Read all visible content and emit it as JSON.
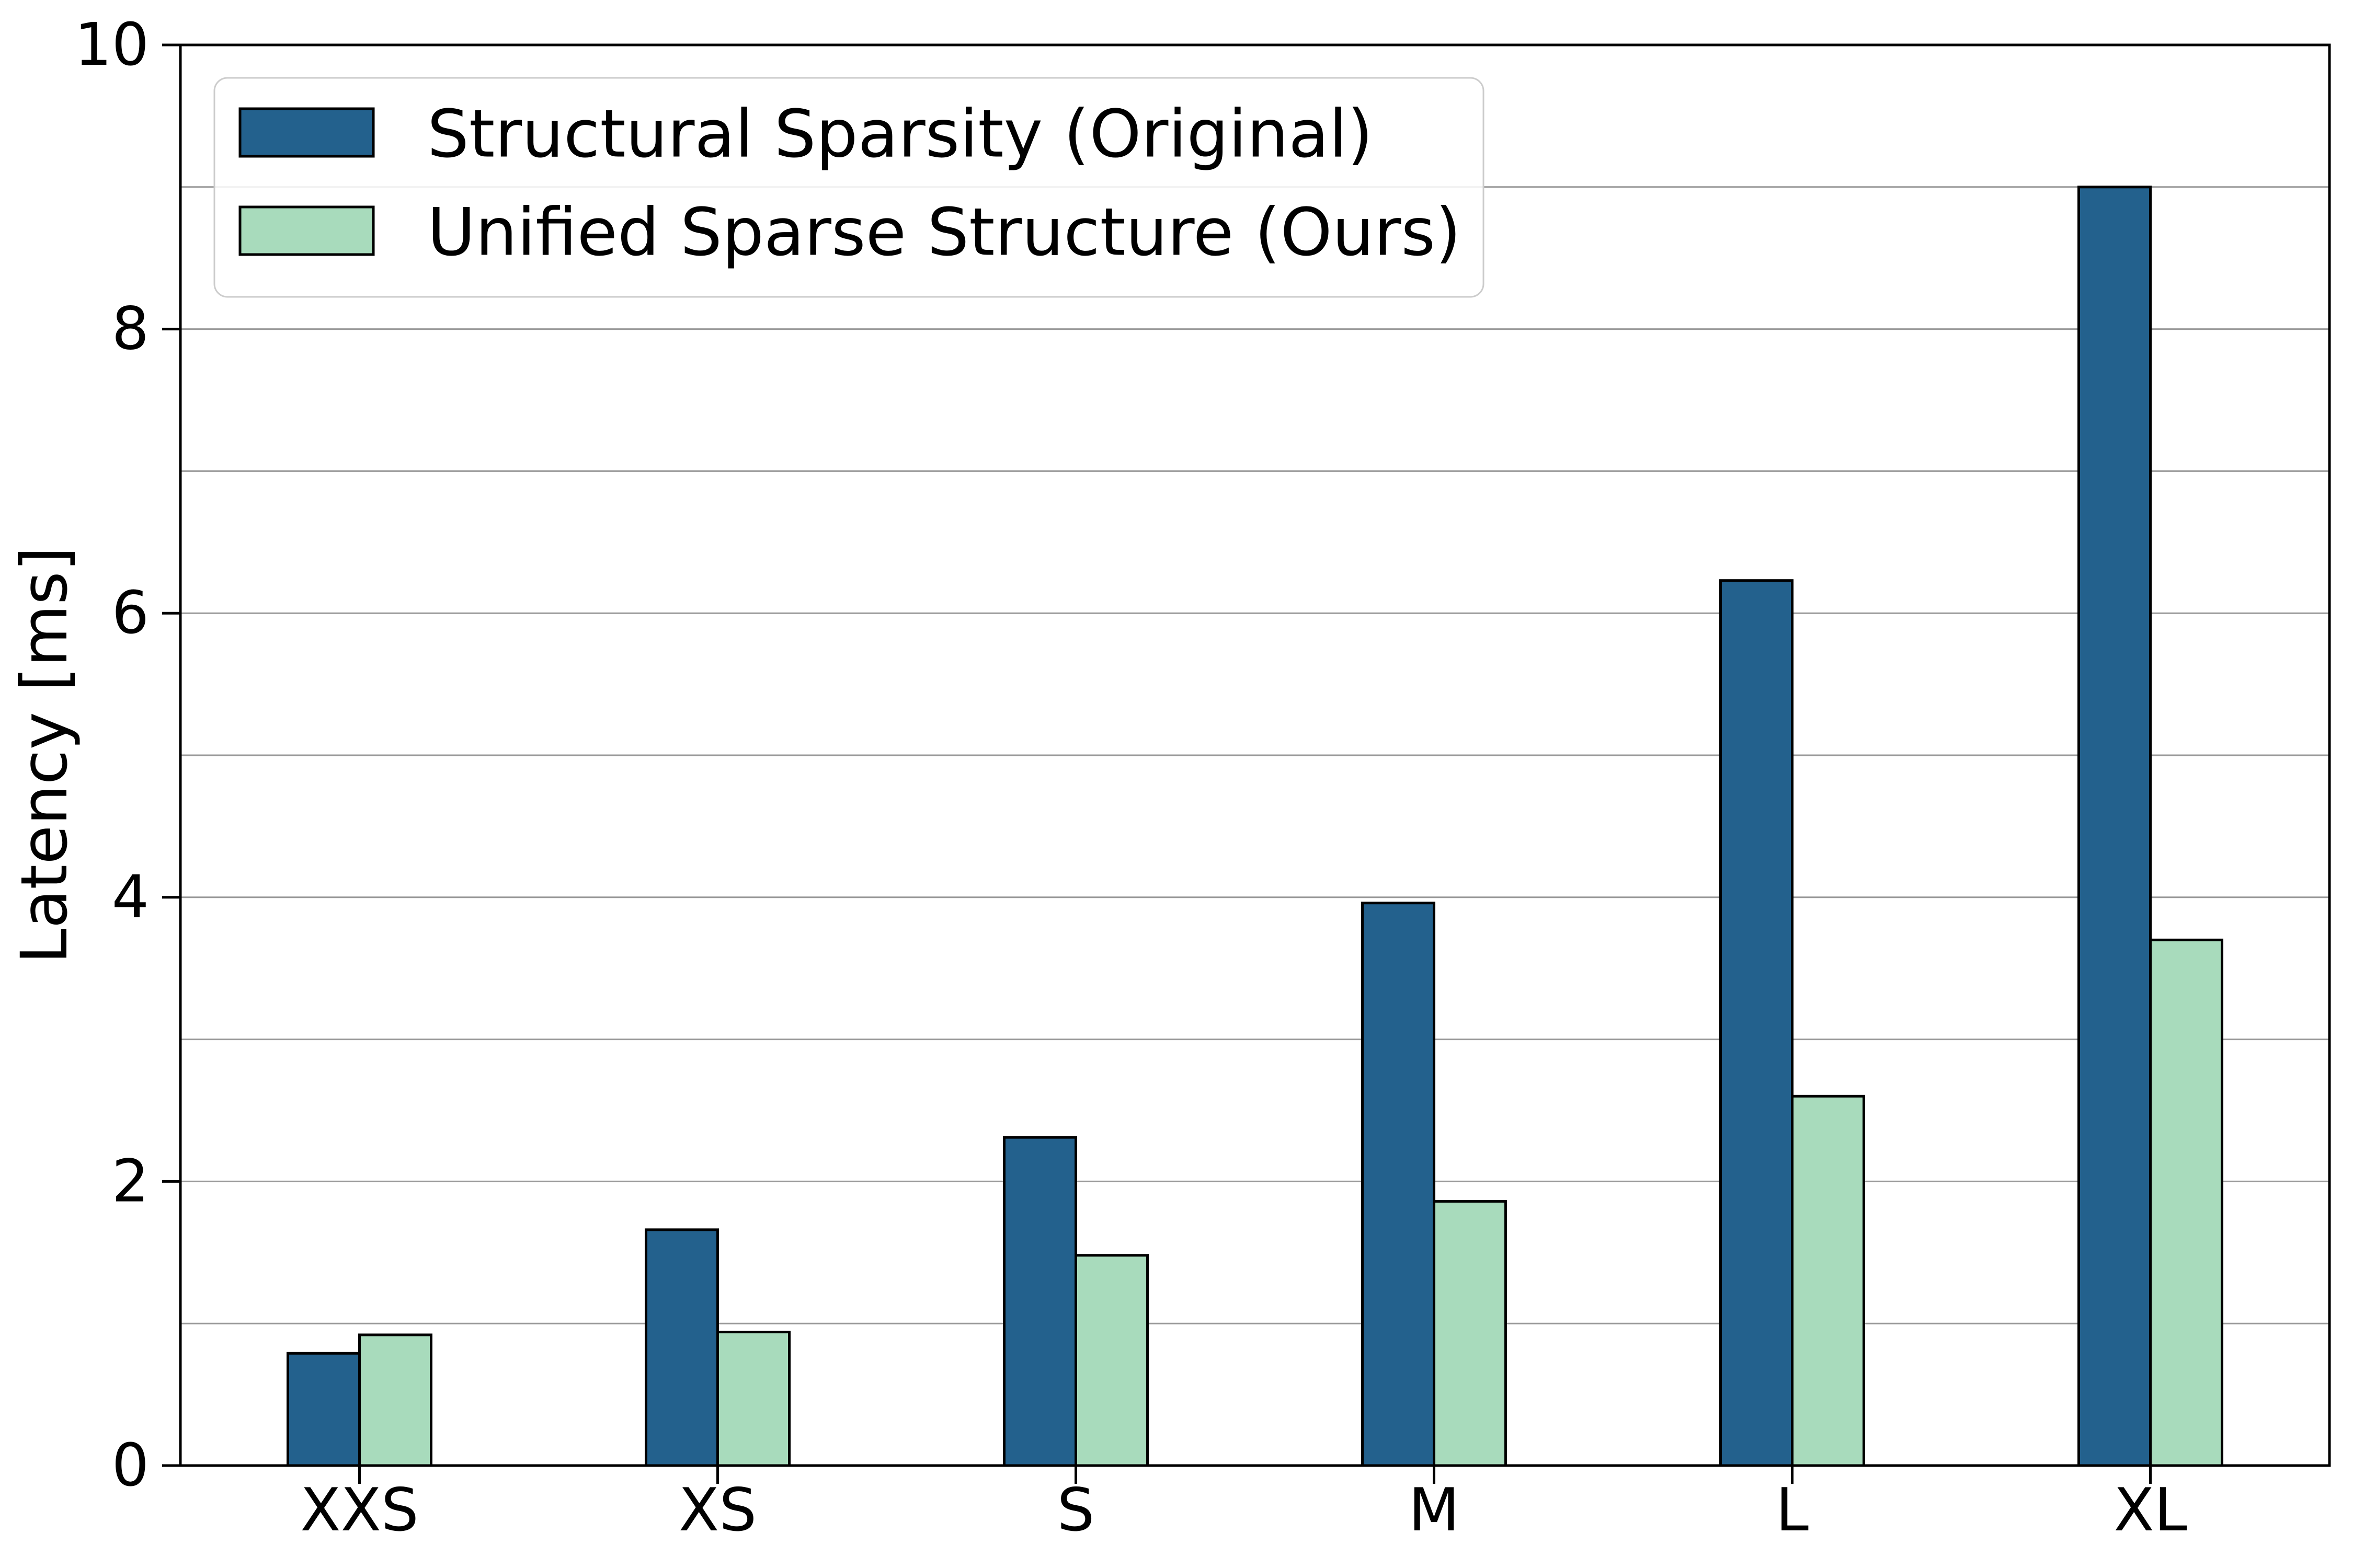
{
  "figure": {
    "ylabel": "Latency [ms]",
    "background_color": "#ffffff"
  },
  "legend": {
    "position": "upper left",
    "items": [
      {
        "label": "Structural Sparsity (Original)",
        "color": "#23618D",
        "swatch": "filled-rect-black-edge"
      },
      {
        "label": "Unified Sparse Structure (Ours)",
        "color": "#A8DBBC",
        "swatch": "filled-rect-black-edge"
      }
    ]
  },
  "chart_data": {
    "type": "bar",
    "categories": [
      "XXS",
      "XS",
      "S",
      "M",
      "L",
      "XL"
    ],
    "series": [
      {
        "name": "Structural Sparsity (Original)",
        "color": "#23618D",
        "values": [
          0.79,
          1.66,
          2.31,
          3.96,
          6.23,
          9.0
        ]
      },
      {
        "name": "Unified Sparse Structure (Ours)",
        "color": "#A8DBBC",
        "values": [
          0.92,
          0.94,
          1.48,
          1.86,
          2.6,
          3.7
        ]
      }
    ],
    "title": "",
    "xlabel": "",
    "ylabel": "Latency [ms]",
    "ylim": [
      0,
      10
    ],
    "yticks": [
      0,
      2,
      4,
      6,
      8,
      10
    ],
    "ytick_labels": [
      "0",
      "2",
      "4",
      "6",
      "8",
      "10"
    ],
    "grid": "horizontal gridlines at every 1 unit, behind bars",
    "grid_color": "#999999",
    "bar_edge_color": "#000000",
    "legend_position": "upper left"
  }
}
